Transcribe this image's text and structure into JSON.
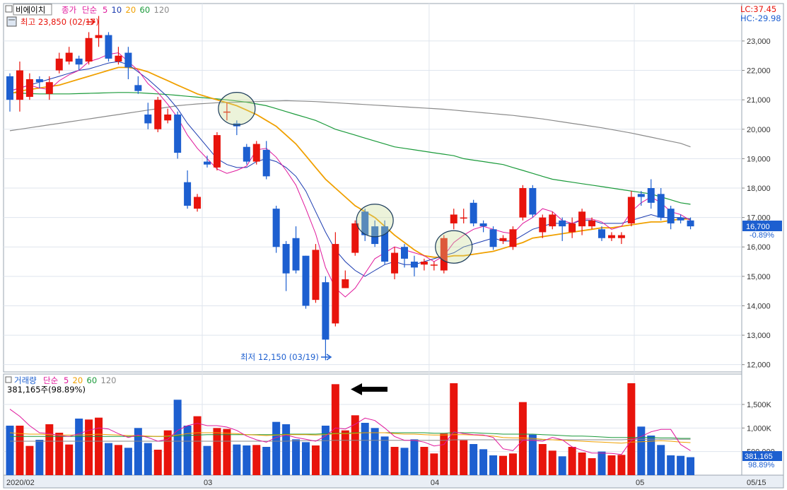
{
  "header": {
    "stock_name": "비에이치",
    "price_legend": [
      "종가",
      "단순",
      "5",
      "10",
      "20",
      "60",
      "120"
    ],
    "lc": "LC:37.45",
    "hc": "HC:-29.98",
    "high_label": "최고 23,850 (02/17)",
    "low_label": "최저 12,150 (03/19)"
  },
  "volume_panel": {
    "legend": [
      "거래량",
      "단순",
      "5",
      "20",
      "60",
      "120"
    ],
    "current": "381,165주(98.89%)",
    "box_value": "381,165",
    "box_pct": "98.89%"
  },
  "price_box": {
    "value": "16,700",
    "pct": "-0.89%"
  },
  "x_labels": [
    "2020/02",
    "03",
    "04",
    "05",
    "05/15"
  ],
  "colors": {
    "up": "#e8140c",
    "down": "#1d5fd0",
    "ma5": "#e0189c",
    "ma10": "#1a3ab0",
    "ma20": "#f0a000",
    "ma60": "#1a9a3a",
    "ma120": "#8a8a8a"
  },
  "chart_data": [
    {
      "type": "candlestick",
      "title": "비에이치",
      "y_ticks": [
        "12,000",
        "13,000",
        "14,000",
        "15,000",
        "16,000",
        "17,000",
        "18,000",
        "19,000",
        "20,000",
        "21,000",
        "22,000",
        "23,000"
      ],
      "ylim": [
        11800,
        24200
      ],
      "candles": [
        [
          21800,
          21000,
          21900,
          20600
        ],
        [
          21000,
          22000,
          22300,
          20600
        ],
        [
          21100,
          21700,
          21900,
          21000
        ],
        [
          21700,
          21600,
          21800,
          21400
        ],
        [
          21200,
          21600,
          21800,
          21000
        ],
        [
          22000,
          22400,
          22600,
          21900
        ],
        [
          22300,
          22600,
          22800,
          22200
        ],
        [
          22400,
          22200,
          22500,
          22000
        ],
        [
          22300,
          23100,
          23300,
          22200
        ],
        [
          23100,
          23200,
          23850,
          22800
        ],
        [
          23200,
          22400,
          23300,
          22300
        ],
        [
          22300,
          22500,
          22800,
          22200
        ],
        [
          22600,
          22100,
          22800,
          21700
        ],
        [
          21500,
          21300,
          21800,
          21200
        ],
        [
          20500,
          20200,
          20900,
          20000
        ],
        [
          20000,
          21000,
          21100,
          19900
        ],
        [
          20300,
          20500,
          20700,
          20200
        ],
        [
          20500,
          19200,
          20600,
          19000
        ],
        [
          18200,
          17400,
          18600,
          17300
        ],
        [
          17300,
          17700,
          17800,
          17200
        ],
        [
          18900,
          18800,
          19100,
          18700
        ],
        [
          18700,
          19800,
          19900,
          18600
        ],
        [
          20600,
          20600,
          20900,
          20300
        ],
        [
          20200,
          20100,
          20300,
          19800
        ],
        [
          19400,
          18900,
          19500,
          18800
        ],
        [
          18900,
          19500,
          19600,
          18800
        ],
        [
          19300,
          18400,
          19600,
          18300
        ],
        [
          17300,
          16000,
          17400,
          15800
        ],
        [
          16100,
          15100,
          16200,
          14500
        ],
        [
          16300,
          15200,
          16700,
          15100
        ],
        [
          15700,
          14000,
          15700,
          13900
        ],
        [
          14200,
          15900,
          16100,
          14100
        ],
        [
          14800,
          12850,
          15000,
          12150
        ],
        [
          13400,
          16100,
          16500,
          13300
        ],
        [
          14600,
          14900,
          15200,
          14600
        ],
        [
          15800,
          16800,
          16900,
          15700
        ],
        [
          17200,
          16400,
          17300,
          16200
        ],
        [
          16700,
          16100,
          16900,
          16000
        ],
        [
          16700,
          15500,
          16900,
          15400
        ],
        [
          15100,
          15800,
          16000,
          14900
        ],
        [
          16000,
          15600,
          16100,
          15300
        ],
        [
          15500,
          15300,
          15700,
          15000
        ],
        [
          15400,
          15500,
          15600,
          15200
        ],
        [
          15400,
          15400,
          15500,
          15200
        ],
        [
          15200,
          16300,
          16400,
          15100
        ],
        [
          16800,
          17100,
          17300,
          16600
        ],
        [
          17000,
          17000,
          17300,
          16800
        ],
        [
          17500,
          16800,
          17600,
          16700
        ],
        [
          16800,
          16700,
          16900,
          16500
        ],
        [
          16600,
          16000,
          16700,
          15900
        ],
        [
          16200,
          16300,
          16400,
          16100
        ],
        [
          16000,
          16600,
          16700,
          15900
        ],
        [
          17000,
          18000,
          18100,
          16900
        ],
        [
          18000,
          17100,
          18100,
          17000
        ],
        [
          16500,
          17000,
          17100,
          16300
        ],
        [
          16700,
          17100,
          17200,
          16600
        ],
        [
          16900,
          16700,
          17000,
          16200
        ],
        [
          16500,
          16800,
          17000,
          16300
        ],
        [
          16700,
          17200,
          17300,
          16400
        ],
        [
          16700,
          16900,
          17000,
          16600
        ],
        [
          16600,
          16300,
          16700,
          16200
        ],
        [
          16300,
          16400,
          16500,
          16200
        ],
        [
          16300,
          16400,
          16500,
          16100
        ],
        [
          16800,
          17700,
          17900,
          16700
        ],
        [
          17800,
          17700,
          17900,
          17400
        ],
        [
          18000,
          17500,
          18300,
          17300
        ],
        [
          17800,
          17000,
          18000,
          16900
        ],
        [
          17300,
          16800,
          17400,
          16600
        ],
        [
          17000,
          16900,
          17100,
          16800
        ],
        [
          16900,
          16700,
          17000,
          16600
        ]
      ],
      "ma5": [
        21300,
        21400,
        21500,
        21400,
        21350,
        21650,
        21850,
        22000,
        22300,
        22400,
        22550,
        22600,
        22300,
        22000,
        21550,
        21250,
        20850,
        20400,
        19800,
        19350,
        19000,
        18650,
        18500,
        18600,
        18750,
        19300,
        19350,
        19050,
        18600,
        18100,
        17300,
        16450,
        15300,
        14600,
        14300,
        14600,
        15100,
        15600,
        15800,
        16000,
        15900,
        15800,
        15700,
        15500,
        15700,
        16150,
        16400,
        16600,
        16700,
        16600,
        16500,
        16450,
        16800,
        17000,
        17300,
        17200,
        16900,
        16800,
        16950,
        16950,
        16850,
        16600,
        16700,
        17200,
        17500,
        17700,
        17500,
        17200,
        17100,
        16900
      ],
      "ma10": [
        21300,
        21400,
        21500,
        21600,
        21700,
        21800,
        21900,
        22000,
        22050,
        22150,
        22250,
        22300,
        22200,
        21950,
        21700,
        21400,
        21100,
        20700,
        20200,
        19800,
        19400,
        19000,
        18800,
        18700,
        18700,
        18900,
        19000,
        18900,
        18700,
        18400,
        17900,
        17200,
        16500,
        15900,
        15500,
        15200,
        15000,
        15200,
        15400,
        15500,
        15400,
        15400,
        15500,
        15600,
        15700,
        15800,
        16000,
        16100,
        16200,
        16300,
        16200,
        16200,
        16400,
        16600,
        16700,
        16800,
        16800,
        16800,
        16900,
        16900,
        16800,
        16800,
        16800,
        16900,
        17000,
        17100,
        17000,
        17000,
        17000,
        16950
      ],
      "ma20": [
        21200,
        21300,
        21350,
        21400,
        21450,
        21500,
        21600,
        21700,
        21800,
        21900,
        22000,
        22100,
        22100,
        22050,
        21950,
        21800,
        21650,
        21500,
        21350,
        21200,
        21100,
        21000,
        20900,
        20800,
        20650,
        20500,
        20300,
        20100,
        19800,
        19500,
        19100,
        18700,
        18300,
        18000,
        17700,
        17400,
        17200,
        17000,
        16700,
        16400,
        16150,
        15900,
        15700,
        15650,
        15650,
        15700,
        15700,
        15750,
        15800,
        15850,
        15950,
        16050,
        16150,
        16300,
        16350,
        16400,
        16450,
        16500,
        16550,
        16600,
        16650,
        16650,
        16700,
        16750,
        16800,
        16850,
        16850,
        16900,
        16950,
        16950
      ],
      "ma60": [
        21250,
        21230,
        21210,
        21200,
        21200,
        21200,
        21200,
        21210,
        21220,
        21230,
        21240,
        21250,
        21250,
        21240,
        21220,
        21200,
        21180,
        21150,
        21120,
        21090,
        21060,
        21030,
        21000,
        20960,
        20920,
        20860,
        20800,
        20700,
        20600,
        20500,
        20400,
        20300,
        20150,
        20000,
        19900,
        19800,
        19700,
        19600,
        19500,
        19400,
        19350,
        19300,
        19250,
        19200,
        19150,
        19100,
        19000,
        18950,
        18900,
        18850,
        18800,
        18700,
        18600,
        18500,
        18400,
        18300,
        18250,
        18200,
        18150,
        18100,
        18050,
        18000,
        17950,
        17900,
        17850,
        17800,
        17700,
        17600,
        17500,
        17450
      ],
      "ma120": [
        19950,
        20000,
        20050,
        20100,
        20150,
        20200,
        20250,
        20300,
        20350,
        20400,
        20450,
        20500,
        20550,
        20600,
        20650,
        20700,
        20750,
        20800,
        20830,
        20860,
        20880,
        20900,
        20910,
        20920,
        20930,
        20940,
        20950,
        20960,
        20970,
        20960,
        20950,
        20940,
        20920,
        20900,
        20880,
        20860,
        20840,
        20820,
        20800,
        20780,
        20760,
        20740,
        20720,
        20700,
        20680,
        20650,
        20620,
        20590,
        20560,
        20530,
        20500,
        20470,
        20430,
        20390,
        20350,
        20300,
        20250,
        20200,
        20150,
        20100,
        20050,
        19990,
        19930,
        19870,
        19800,
        19730,
        19660,
        19590,
        19520,
        19400
      ]
    },
    {
      "type": "bar",
      "title": "거래량",
      "y_ticks": [
        "500,000",
        "1,000K",
        "1,500K"
      ],
      "ylim": [
        0,
        2100000
      ],
      "values": [
        1050000,
        1050000,
        620000,
        750000,
        1080000,
        900000,
        650000,
        1200000,
        1180000,
        1220000,
        680000,
        640000,
        580000,
        1000000,
        680000,
        540000,
        950000,
        1600000,
        1050000,
        1250000,
        620000,
        1000000,
        980000,
        650000,
        630000,
        640000,
        600000,
        1130000,
        1080000,
        760000,
        700000,
        630000,
        1050000,
        1930000,
        950000,
        1270000,
        1110000,
        1000000,
        820000,
        600000,
        580000,
        760000,
        600000,
        460000,
        880000,
        1950000,
        740000,
        660000,
        550000,
        420000,
        410000,
        460000,
        1550000,
        860000,
        660000,
        520000,
        400000,
        600000,
        480000,
        360000,
        500000,
        420000,
        430000,
        1950000,
        1030000,
        840000,
        640000,
        420000,
        410000,
        381165
      ],
      "ma5": [
        1400000,
        1250000,
        1050000,
        900000,
        880000,
        840000,
        820000,
        880000,
        950000,
        1000000,
        980000,
        880000,
        800000,
        850000,
        800000,
        720000,
        760000,
        950000,
        1050000,
        1100000,
        1050000,
        1050000,
        1020000,
        950000,
        830000,
        750000,
        700000,
        800000,
        850000,
        800000,
        760000,
        720000,
        830000,
        1000000,
        980000,
        1080000,
        1210000,
        1160000,
        1000000,
        820000,
        740000,
        740000,
        700000,
        620000,
        650000,
        920000,
        880000,
        860000,
        850000,
        800000,
        560000,
        520000,
        740000,
        740000,
        720000,
        800000,
        750000,
        600000,
        530000,
        470000,
        470000,
        460000,
        440000,
        740000,
        820000,
        920000,
        970000,
        970000,
        650000,
        520000
      ],
      "ma20": [
        900000,
        880000,
        870000,
        870000,
        860000,
        850000,
        850000,
        850000,
        860000,
        870000,
        860000,
        850000,
        840000,
        840000,
        830000,
        820000,
        830000,
        850000,
        880000,
        900000,
        900000,
        900000,
        890000,
        880000,
        860000,
        850000,
        840000,
        850000,
        860000,
        860000,
        860000,
        850000,
        860000,
        880000,
        880000,
        890000,
        900000,
        900000,
        900000,
        880000,
        870000,
        870000,
        860000,
        850000,
        850000,
        860000,
        860000,
        850000,
        840000,
        830000,
        800000,
        790000,
        790000,
        780000,
        760000,
        750000,
        740000,
        730000,
        720000,
        710000,
        700000,
        690000,
        680000,
        700000,
        710000,
        720000,
        730000,
        720000,
        700000,
        690000
      ],
      "ma60": [
        820000,
        820000,
        820000,
        820000,
        820000,
        820000,
        820000,
        820000,
        820000,
        820000,
        820000,
        820000,
        820000,
        820000,
        820000,
        820000,
        820000,
        830000,
        840000,
        850000,
        860000,
        860000,
        860000,
        860000,
        860000,
        860000,
        860000,
        860000,
        870000,
        870000,
        870000,
        870000,
        880000,
        890000,
        890000,
        900000,
        900000,
        900000,
        900000,
        900000,
        900000,
        900000,
        900000,
        890000,
        890000,
        900000,
        900000,
        900000,
        890000,
        880000,
        870000,
        870000,
        870000,
        870000,
        860000,
        850000,
        840000,
        830000,
        830000,
        820000,
        810000,
        800000,
        800000,
        800000,
        800000,
        800000,
        790000,
        790000,
        780000,
        780000
      ],
      "ma120": [
        720000,
        720000,
        720000,
        720000,
        720000,
        720000,
        720000,
        720000,
        720000,
        720000,
        720000,
        720000,
        720000,
        720000,
        720000,
        720000,
        720000,
        720000,
        720000,
        720000,
        720000,
        720000,
        720000,
        720000,
        720000,
        720000,
        720000,
        720000,
        720000,
        730000,
        730000,
        730000,
        730000,
        740000,
        740000,
        740000,
        740000,
        740000,
        740000,
        740000,
        740000,
        740000,
        740000,
        740000,
        740000,
        750000,
        750000,
        750000,
        750000,
        750000,
        750000,
        750000,
        750000,
        750000,
        750000,
        750000,
        750000,
        750000,
        750000,
        750000,
        750000,
        750000,
        750000,
        760000,
        760000,
        760000,
        760000,
        760000,
        760000,
        760000
      ]
    }
  ]
}
